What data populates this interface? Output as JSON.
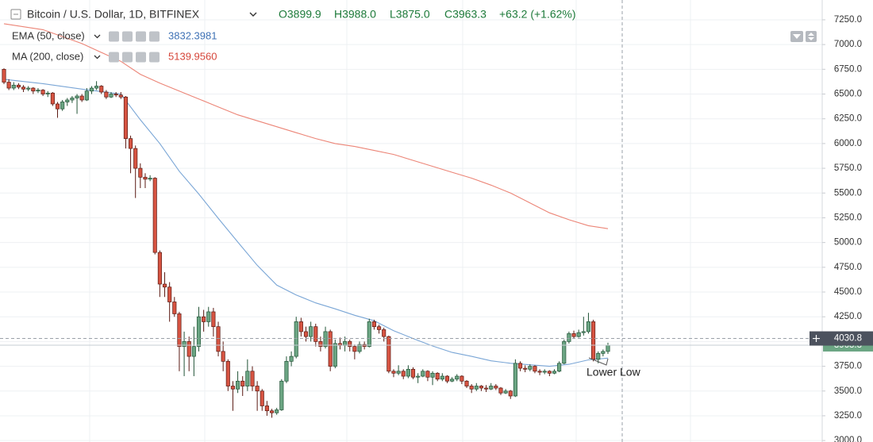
{
  "chart_data": {
    "type": "candlestick",
    "header": {
      "symbol": "Bitcoin / U.S. Dollar, 1D, BITFINEX",
      "open": "O3899.9",
      "high": "H3988.0",
      "low": "L3875.0",
      "close": "C3963.3",
      "change": "+63.2 (+1.62%)"
    },
    "up_color": "#6ba583",
    "down_color": "#d75442",
    "candles": [
      [
        6750,
        6760,
        6600,
        6620
      ],
      [
        6620,
        6650,
        6540,
        6560
      ],
      [
        6560,
        6620,
        6540,
        6590
      ],
      [
        6590,
        6610,
        6550,
        6570
      ],
      [
        6570,
        6590,
        6520,
        6550
      ],
      [
        6550,
        6580,
        6530,
        6560
      ],
      [
        6560,
        6570,
        6500,
        6530
      ],
      [
        6530,
        6560,
        6510,
        6540
      ],
      [
        6540,
        6550,
        6480,
        6500
      ],
      [
        6500,
        6530,
        6470,
        6510
      ],
      [
        6510,
        6520,
        6380,
        6400
      ],
      [
        6400,
        6420,
        6260,
        6350
      ],
      [
        6350,
        6440,
        6330,
        6420
      ],
      [
        6420,
        6460,
        6380,
        6440
      ],
      [
        6440,
        6480,
        6410,
        6460
      ],
      [
        6460,
        6500,
        6300,
        6480
      ],
      [
        6480,
        6500,
        6420,
        6440
      ],
      [
        6440,
        6560,
        6430,
        6530
      ],
      [
        6530,
        6580,
        6500,
        6560
      ],
      [
        6560,
        6630,
        6540,
        6580
      ],
      [
        6580,
        6590,
        6500,
        6520
      ],
      [
        6520,
        6540,
        6450,
        6470
      ],
      [
        6470,
        6520,
        6460,
        6500
      ],
      [
        6500,
        6520,
        6470,
        6490
      ],
      [
        6490,
        6520,
        6450,
        6470
      ],
      [
        6470,
        6480,
        5950,
        6050
      ],
      [
        6050,
        6080,
        5700,
        5950
      ],
      [
        5950,
        5980,
        5450,
        5750
      ],
      [
        5750,
        5800,
        5550,
        5660
      ],
      [
        5660,
        5700,
        5550,
        5640
      ],
      [
        5640,
        5680,
        5620,
        5650
      ],
      [
        5650,
        5660,
        4880,
        4900
      ],
      [
        4900,
        4920,
        4450,
        4580
      ],
      [
        4580,
        4700,
        4450,
        4550
      ],
      [
        4550,
        4600,
        4200,
        4400
      ],
      [
        4400,
        4450,
        4250,
        4280
      ],
      [
        4280,
        4300,
        3700,
        3950
      ],
      [
        3950,
        4100,
        3650,
        4000
      ],
      [
        4000,
        4050,
        3700,
        3850
      ],
      [
        3850,
        4150,
        3650,
        3950
      ],
      [
        3950,
        4350,
        3900,
        4250
      ],
      [
        4250,
        4320,
        4100,
        4200
      ],
      [
        4200,
        4350,
        4150,
        4300
      ],
      [
        4300,
        4340,
        4050,
        4150
      ],
      [
        4150,
        4200,
        3850,
        3900
      ],
      [
        3900,
        4000,
        3700,
        3800
      ],
      [
        3800,
        3820,
        3500,
        3550
      ],
      [
        3550,
        3600,
        3300,
        3520
      ],
      [
        3520,
        3700,
        3480,
        3600
      ],
      [
        3600,
        3650,
        3450,
        3550
      ],
      [
        3550,
        3820,
        3500,
        3700
      ],
      [
        3700,
        3750,
        3500,
        3550
      ],
      [
        3550,
        3600,
        3300,
        3500
      ],
      [
        3500,
        3520,
        3300,
        3350
      ],
      [
        3350,
        3400,
        3250,
        3300
      ],
      [
        3300,
        3320,
        3230,
        3280
      ],
      [
        3280,
        3330,
        3260,
        3310
      ],
      [
        3310,
        3620,
        3300,
        3600
      ],
      [
        3600,
        3850,
        3580,
        3800
      ],
      [
        3800,
        3900,
        3750,
        3850
      ],
      [
        3850,
        4250,
        3830,
        4200
      ],
      [
        4200,
        4240,
        4050,
        4100
      ],
      [
        4100,
        4150,
        4000,
        4050
      ],
      [
        4050,
        4200,
        4000,
        4150
      ],
      [
        4150,
        4180,
        3950,
        4000
      ],
      [
        4000,
        4050,
        3900,
        3950
      ],
      [
        3950,
        4150,
        3930,
        4100
      ],
      [
        4100,
        4120,
        3700,
        3750
      ],
      [
        3750,
        4020,
        3730,
        3980
      ],
      [
        3980,
        4040,
        3920,
        3960
      ],
      [
        3960,
        4050,
        3900,
        4000
      ],
      [
        4000,
        4020,
        3900,
        3950
      ],
      [
        3950,
        3970,
        3820,
        3900
      ],
      [
        3900,
        4000,
        3880,
        3970
      ],
      [
        3970,
        4000,
        3920,
        3950
      ],
      [
        3950,
        4230,
        3940,
        4200
      ],
      [
        4200,
        4220,
        4120,
        4150
      ],
      [
        4150,
        4170,
        4080,
        4120
      ],
      [
        4120,
        4140,
        4000,
        4050
      ],
      [
        4050,
        4060,
        3680,
        3700
      ],
      [
        3700,
        3720,
        3640,
        3680
      ],
      [
        3680,
        3760,
        3660,
        3700
      ],
      [
        3700,
        3720,
        3620,
        3650
      ],
      [
        3650,
        3760,
        3630,
        3720
      ],
      [
        3720,
        3740,
        3620,
        3640
      ],
      [
        3640,
        3680,
        3580,
        3650
      ],
      [
        3650,
        3720,
        3640,
        3700
      ],
      [
        3700,
        3710,
        3600,
        3640
      ],
      [
        3640,
        3700,
        3560,
        3680
      ],
      [
        3680,
        3690,
        3600,
        3620
      ],
      [
        3620,
        3680,
        3600,
        3650
      ],
      [
        3650,
        3660,
        3580,
        3600
      ],
      [
        3600,
        3640,
        3590,
        3620
      ],
      [
        3620,
        3670,
        3600,
        3650
      ],
      [
        3650,
        3660,
        3570,
        3600
      ],
      [
        3600,
        3610,
        3530,
        3550
      ],
      [
        3550,
        3570,
        3480,
        3520
      ],
      [
        3520,
        3580,
        3500,
        3550
      ],
      [
        3550,
        3560,
        3500,
        3530
      ],
      [
        3530,
        3560,
        3490,
        3520
      ],
      [
        3520,
        3580,
        3510,
        3550
      ],
      [
        3550,
        3570,
        3510,
        3530
      ],
      [
        3530,
        3540,
        3460,
        3480
      ],
      [
        3480,
        3520,
        3470,
        3500
      ],
      [
        3500,
        3510,
        3420,
        3450
      ],
      [
        3450,
        3820,
        3440,
        3780
      ],
      [
        3780,
        3800,
        3700,
        3730
      ],
      [
        3730,
        3760,
        3690,
        3720
      ],
      [
        3720,
        3770,
        3700,
        3750
      ],
      [
        3750,
        3760,
        3680,
        3700
      ],
      [
        3700,
        3720,
        3660,
        3690
      ],
      [
        3690,
        3720,
        3670,
        3700
      ],
      [
        3700,
        3710,
        3650,
        3680
      ],
      [
        3680,
        3720,
        3670,
        3700
      ],
      [
        3700,
        3800,
        3690,
        3780
      ],
      [
        3780,
        4020,
        3770,
        4000
      ],
      [
        4000,
        4100,
        3980,
        4080
      ],
      [
        4080,
        4110,
        4030,
        4050
      ],
      [
        4050,
        4120,
        4040,
        4090
      ],
      [
        4090,
        4250,
        4060,
        4100
      ],
      [
        4100,
        4290,
        4080,
        4200
      ],
      [
        4200,
        4220,
        3800,
        3820
      ],
      [
        3820,
        3900,
        3780,
        3880
      ],
      [
        3880,
        3920,
        3850,
        3900
      ],
      [
        3899.9,
        3988.0,
        3875.0,
        3963.3
      ]
    ],
    "lines": [
      {
        "name": "EMA (50, close)",
        "color": "#7aa6d6",
        "label_color": "#3f72b5",
        "last": 3832.3981,
        "x": [
          0,
          8,
          16,
          24,
          28,
          32,
          36,
          40,
          44,
          48,
          52,
          56,
          60,
          64,
          68,
          72,
          76,
          80,
          84,
          88,
          92,
          96,
          100,
          104,
          108,
          112,
          116,
          120,
          124
        ],
        "values": [
          6649,
          6605,
          6550,
          6500,
          6240,
          6000,
          5720,
          5490,
          5245,
          5005,
          4770,
          4570,
          4470,
          4390,
          4330,
          4265,
          4210,
          4110,
          4030,
          3955,
          3890,
          3850,
          3805,
          3780,
          3765,
          3750,
          3770,
          3815,
          3832.4
        ]
      },
      {
        "name": "MA (200, close)",
        "color": "#ec8577",
        "label_color": "#d6463a",
        "last": {
          "value": 5139.956,
          "label": "5139.9560"
        },
        "x": [
          0,
          8,
          16,
          24,
          28,
          32,
          36,
          40,
          44,
          48,
          52,
          56,
          60,
          64,
          68,
          72,
          76,
          80,
          84,
          88,
          92,
          96,
          100,
          104,
          108,
          112,
          116,
          120,
          124
        ],
        "values": [
          7210,
          7150,
          7010,
          6830,
          6700,
          6610,
          6530,
          6450,
          6370,
          6290,
          6230,
          6170,
          6110,
          6050,
          6000,
          5970,
          5930,
          5890,
          5830,
          5770,
          5710,
          5650,
          5580,
          5500,
          5400,
          5300,
          5230,
          5170,
          5140
        ]
      }
    ],
    "ylim": [
      2985,
      7450
    ],
    "yticks": [
      {
        "value": 3000,
        "label": "3000.0"
      },
      {
        "value": 3250,
        "label": "3250.0"
      },
      {
        "value": 3500,
        "label": "3500.0"
      },
      {
        "value": 3750,
        "label": "3750.0"
      },
      {
        "value": 4000,
        "label": "4000.0"
      },
      {
        "value": 4250,
        "label": "4250.0"
      },
      {
        "value": 4500,
        "label": "4500.0"
      },
      {
        "value": 4750,
        "label": "4750.0"
      },
      {
        "value": 5000,
        "label": "5000.0"
      },
      {
        "value": 5250,
        "label": "5250.0"
      },
      {
        "value": 5500,
        "label": "5500.0"
      },
      {
        "value": 5750,
        "label": "5750.0"
      },
      {
        "value": 6000,
        "label": "6000.0"
      },
      {
        "value": 6250,
        "label": "6250.0"
      },
      {
        "value": 6500,
        "label": "6500.0"
      },
      {
        "value": 6750,
        "label": "6750.0"
      },
      {
        "value": 7000,
        "label": "7000.0"
      },
      {
        "value": 7250,
        "label": "7250.0"
      }
    ],
    "grid": true,
    "crosshair": {
      "price": 4030.8
    },
    "annotation": "Lower Low"
  }
}
